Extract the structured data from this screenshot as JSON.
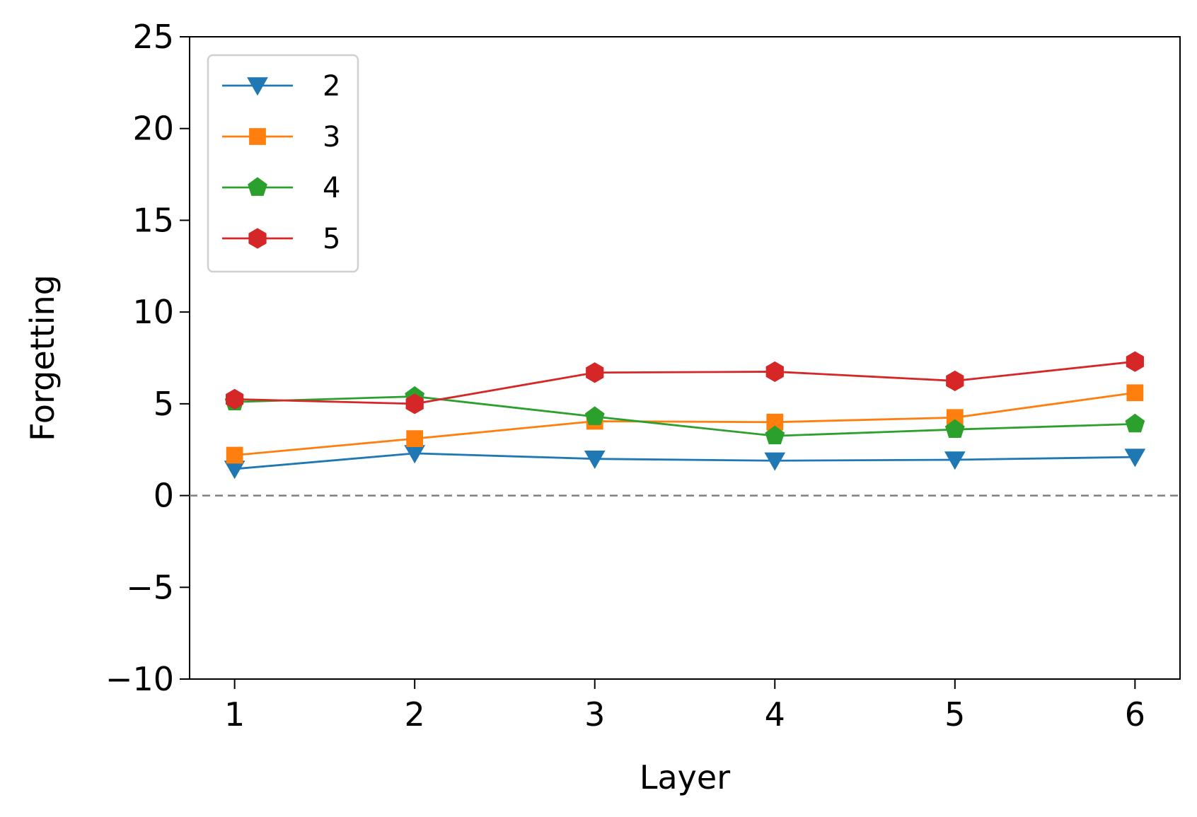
{
  "chart_data": {
    "type": "line",
    "title": "",
    "xlabel": "Layer",
    "ylabel": "Forgetting",
    "x": [
      1,
      2,
      3,
      4,
      5,
      6
    ],
    "xticks": [
      "1",
      "2",
      "3",
      "4",
      "5",
      "6"
    ],
    "xlim": [
      0.75,
      6.25
    ],
    "ylim": [
      -10,
      25
    ],
    "yticks": [
      -10,
      -5,
      0,
      5,
      10,
      15,
      20,
      25
    ],
    "ytick_labels": [
      "−10",
      "−5",
      "0",
      "5",
      "10",
      "15",
      "20",
      "25"
    ],
    "grid": false,
    "legend_position": "top-left",
    "reference_line": {
      "y": 0,
      "style": "dashed",
      "color": "#808080"
    },
    "series": [
      {
        "name": "2",
        "color": "#1f77b4",
        "marker": "triangle-down",
        "values": [
          1.45,
          2.3,
          2.0,
          1.9,
          1.95,
          2.1
        ]
      },
      {
        "name": "3",
        "color": "#ff7f0e",
        "marker": "square",
        "values": [
          2.2,
          3.1,
          4.05,
          4.0,
          4.25,
          5.6
        ]
      },
      {
        "name": "4",
        "color": "#2ca02c",
        "marker": "pentagon",
        "values": [
          5.1,
          5.4,
          4.3,
          3.25,
          3.6,
          3.9
        ]
      },
      {
        "name": "5",
        "color": "#d62728",
        "marker": "hexagon",
        "values": [
          5.25,
          5.0,
          6.7,
          6.75,
          6.25,
          7.3
        ]
      }
    ]
  }
}
